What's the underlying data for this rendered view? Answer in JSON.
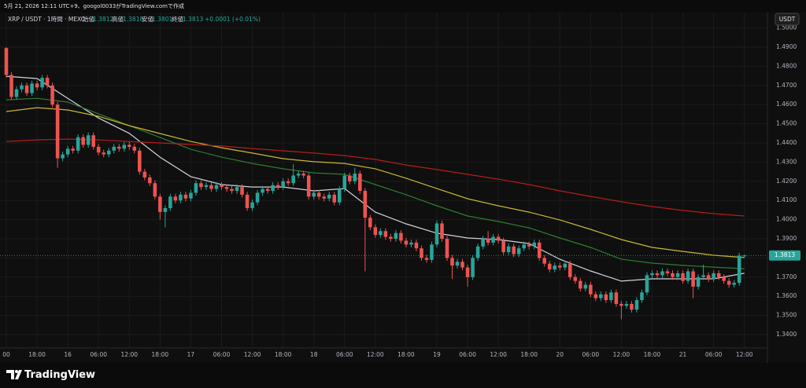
{
  "header": {
    "credit": "5月 21, 2026 12:11 UTC+9、googol0033がTradingView.comで作成",
    "brand": "TradingView",
    "currency_button": "USDT"
  },
  "chart_data": {
    "type": "candlestick",
    "symbol": "XRP / USDT · 1時間 · MEXC",
    "ohlc_labels": [
      "始値",
      "高値",
      "安値",
      "終値"
    ],
    "change": "+0.0001 (+0.01%)",
    "up_color": "#26a69a",
    "down_color": "#ef5350",
    "candles": [
      [
        1.4895,
        1.49,
        1.474,
        1.4755
      ],
      [
        1.4755,
        1.477,
        1.4625,
        1.464
      ],
      [
        1.464,
        1.4695,
        1.4625,
        1.468
      ],
      [
        1.468,
        1.4715,
        1.4665,
        1.47
      ],
      [
        1.47,
        1.4715,
        1.4645,
        1.466
      ],
      [
        1.466,
        1.4725,
        1.4645,
        1.471
      ],
      [
        1.471,
        1.4725,
        1.4675,
        1.469
      ],
      [
        1.469,
        1.4755,
        1.4675,
        1.474
      ],
      [
        1.474,
        1.4755,
        1.4685,
        1.47
      ],
      [
        1.47,
        1.4715,
        1.4585,
        1.46
      ],
      [
        1.46,
        1.4615,
        1.427,
        1.432
      ],
      [
        1.432,
        1.4355,
        1.4305,
        1.434
      ],
      [
        1.434,
        1.4385,
        1.4325,
        1.437
      ],
      [
        1.437,
        1.4385,
        1.4345,
        1.436
      ],
      [
        1.436,
        1.4445,
        1.4345,
        1.443
      ],
      [
        1.443,
        1.4445,
        1.4375,
        1.439
      ],
      [
        1.439,
        1.4455,
        1.4375,
        1.444
      ],
      [
        1.444,
        1.4455,
        1.4365,
        1.438
      ],
      [
        1.438,
        1.4395,
        1.4335,
        1.435
      ],
      [
        1.435,
        1.4365,
        1.4325,
        1.434
      ],
      [
        1.434,
        1.4375,
        1.4325,
        1.436
      ],
      [
        1.436,
        1.4395,
        1.4345,
        1.438
      ],
      [
        1.438,
        1.4395,
        1.4355,
        1.437
      ],
      [
        1.437,
        1.4405,
        1.4355,
        1.439
      ],
      [
        1.439,
        1.4405,
        1.4365,
        1.438
      ],
      [
        1.438,
        1.4395,
        1.4345,
        1.436
      ],
      [
        1.436,
        1.4375,
        1.4235,
        1.425
      ],
      [
        1.425,
        1.4265,
        1.4205,
        1.422
      ],
      [
        1.422,
        1.4235,
        1.4175,
        1.419
      ],
      [
        1.419,
        1.4205,
        1.4105,
        1.412
      ],
      [
        1.412,
        1.4135,
        1.4,
        1.404
      ],
      [
        1.404,
        1.4075,
        1.396,
        1.406
      ],
      [
        1.406,
        1.4135,
        1.4045,
        1.412
      ],
      [
        1.412,
        1.4135,
        1.4085,
        1.41
      ],
      [
        1.41,
        1.4145,
        1.4085,
        1.413
      ],
      [
        1.413,
        1.4145,
        1.4095,
        1.411
      ],
      [
        1.411,
        1.4155,
        1.4095,
        1.414
      ],
      [
        1.414,
        1.4205,
        1.4125,
        1.419
      ],
      [
        1.419,
        1.4205,
        1.4155,
        1.417
      ],
      [
        1.417,
        1.4195,
        1.4155,
        1.418
      ],
      [
        1.418,
        1.4195,
        1.4145,
        1.416
      ],
      [
        1.416,
        1.4195,
        1.4145,
        1.418
      ],
      [
        1.418,
        1.4195,
        1.4155,
        1.417
      ],
      [
        1.417,
        1.4185,
        1.4145,
        1.416
      ],
      [
        1.416,
        1.4175,
        1.4135,
        1.415
      ],
      [
        1.415,
        1.4185,
        1.4135,
        1.417
      ],
      [
        1.417,
        1.4185,
        1.4115,
        1.413
      ],
      [
        1.413,
        1.4145,
        1.4045,
        1.406
      ],
      [
        1.406,
        1.4105,
        1.4045,
        1.409
      ],
      [
        1.409,
        1.4155,
        1.4075,
        1.414
      ],
      [
        1.414,
        1.4175,
        1.4125,
        1.416
      ],
      [
        1.416,
        1.4175,
        1.4135,
        1.415
      ],
      [
        1.415,
        1.4195,
        1.4135,
        1.418
      ],
      [
        1.418,
        1.4195,
        1.4155,
        1.417
      ],
      [
        1.417,
        1.4215,
        1.4155,
        1.42
      ],
      [
        1.42,
        1.4215,
        1.4175,
        1.419
      ],
      [
        1.419,
        1.429,
        1.4175,
        1.423
      ],
      [
        1.423,
        1.4255,
        1.4215,
        1.424
      ],
      [
        1.424,
        1.4255,
        1.4215,
        1.423
      ],
      [
        1.423,
        1.4245,
        1.4105,
        1.412
      ],
      [
        1.412,
        1.4155,
        1.4105,
        1.414
      ],
      [
        1.414,
        1.4155,
        1.4105,
        1.412
      ],
      [
        1.412,
        1.4135,
        1.4095,
        1.411
      ],
      [
        1.411,
        1.4145,
        1.4095,
        1.413
      ],
      [
        1.413,
        1.4145,
        1.4075,
        1.409
      ],
      [
        1.409,
        1.4175,
        1.4075,
        1.416
      ],
      [
        1.416,
        1.4245,
        1.4145,
        1.423
      ],
      [
        1.423,
        1.4245,
        1.4185,
        1.42
      ],
      [
        1.42,
        1.427,
        1.4185,
        1.424
      ],
      [
        1.424,
        1.4255,
        1.4135,
        1.415
      ],
      [
        1.415,
        1.4165,
        1.373,
        1.401
      ],
      [
        1.401,
        1.4025,
        1.3945,
        1.396
      ],
      [
        1.396,
        1.3975,
        1.3905,
        1.392
      ],
      [
        1.392,
        1.3955,
        1.3905,
        1.394
      ],
      [
        1.394,
        1.3955,
        1.3895,
        1.391
      ],
      [
        1.391,
        1.3925,
        1.3885,
        1.39
      ],
      [
        1.39,
        1.3945,
        1.3885,
        1.393
      ],
      [
        1.393,
        1.3945,
        1.3875,
        1.389
      ],
      [
        1.389,
        1.3905,
        1.3855,
        1.387
      ],
      [
        1.387,
        1.3895,
        1.3855,
        1.388
      ],
      [
        1.388,
        1.3895,
        1.3835,
        1.385
      ],
      [
        1.385,
        1.3865,
        1.3785,
        1.38
      ],
      [
        1.38,
        1.3815,
        1.3775,
        1.379
      ],
      [
        1.379,
        1.3885,
        1.3775,
        1.387
      ],
      [
        1.387,
        1.3995,
        1.3855,
        1.398
      ],
      [
        1.398,
        1.3995,
        1.3885,
        1.39
      ],
      [
        1.39,
        1.3915,
        1.3785,
        1.38
      ],
      [
        1.38,
        1.3815,
        1.369,
        1.376
      ],
      [
        1.376,
        1.3795,
        1.3745,
        1.378
      ],
      [
        1.378,
        1.3795,
        1.3735,
        1.375
      ],
      [
        1.375,
        1.3765,
        1.365,
        1.37
      ],
      [
        1.37,
        1.3815,
        1.3685,
        1.38
      ],
      [
        1.38,
        1.3875,
        1.3785,
        1.386
      ],
      [
        1.386,
        1.3915,
        1.3845,
        1.39
      ],
      [
        1.39,
        1.394,
        1.3865,
        1.388
      ],
      [
        1.388,
        1.3925,
        1.3865,
        1.391
      ],
      [
        1.391,
        1.3925,
        1.3875,
        1.389
      ],
      [
        1.389,
        1.3905,
        1.3815,
        1.383
      ],
      [
        1.383,
        1.3875,
        1.3815,
        1.386
      ],
      [
        1.386,
        1.3875,
        1.3805,
        1.382
      ],
      [
        1.382,
        1.3865,
        1.3805,
        1.385
      ],
      [
        1.385,
        1.3885,
        1.3835,
        1.387
      ],
      [
        1.387,
        1.3885,
        1.3845,
        1.386
      ],
      [
        1.386,
        1.3895,
        1.3845,
        1.388
      ],
      [
        1.388,
        1.3895,
        1.3785,
        1.38
      ],
      [
        1.38,
        1.3815,
        1.3755,
        1.377
      ],
      [
        1.377,
        1.3785,
        1.3725,
        1.374
      ],
      [
        1.374,
        1.3775,
        1.3725,
        1.376
      ],
      [
        1.376,
        1.3775,
        1.3735,
        1.375
      ],
      [
        1.375,
        1.3785,
        1.3735,
        1.377
      ],
      [
        1.377,
        1.3785,
        1.3685,
        1.37
      ],
      [
        1.37,
        1.3715,
        1.3665,
        1.368
      ],
      [
        1.368,
        1.3695,
        1.3625,
        1.364
      ],
      [
        1.364,
        1.3675,
        1.3625,
        1.366
      ],
      [
        1.366,
        1.3675,
        1.3595,
        1.361
      ],
      [
        1.361,
        1.3625,
        1.3575,
        1.359
      ],
      [
        1.359,
        1.3625,
        1.3575,
        1.361
      ],
      [
        1.361,
        1.3625,
        1.3565,
        1.358
      ],
      [
        1.358,
        1.3635,
        1.3565,
        1.362
      ],
      [
        1.362,
        1.3635,
        1.3545,
        1.356
      ],
      [
        1.356,
        1.3575,
        1.348,
        1.355
      ],
      [
        1.355,
        1.3575,
        1.3535,
        1.356
      ],
      [
        1.356,
        1.3575,
        1.3515,
        1.353
      ],
      [
        1.353,
        1.3595,
        1.3515,
        1.358
      ],
      [
        1.358,
        1.3635,
        1.3565,
        1.362
      ],
      [
        1.362,
        1.3725,
        1.3605,
        1.371
      ],
      [
        1.371,
        1.3735,
        1.3695,
        1.372
      ],
      [
        1.372,
        1.3735,
        1.3695,
        1.371
      ],
      [
        1.371,
        1.3745,
        1.3695,
        1.373
      ],
      [
        1.373,
        1.3745,
        1.3705,
        1.372
      ],
      [
        1.372,
        1.3735,
        1.3685,
        1.37
      ],
      [
        1.37,
        1.3735,
        1.3685,
        1.372
      ],
      [
        1.372,
        1.3735,
        1.3665,
        1.368
      ],
      [
        1.368,
        1.3745,
        1.3665,
        1.373
      ],
      [
        1.373,
        1.3745,
        1.359,
        1.365
      ],
      [
        1.365,
        1.3715,
        1.3635,
        1.37
      ],
      [
        1.37,
        1.3765,
        1.3685,
        1.371
      ],
      [
        1.371,
        1.3725,
        1.3675,
        1.369
      ],
      [
        1.369,
        1.3735,
        1.3675,
        1.372
      ],
      [
        1.372,
        1.3735,
        1.3685,
        1.37
      ],
      [
        1.37,
        1.3715,
        1.3665,
        1.368
      ],
      [
        1.368,
        1.3695,
        1.3645,
        1.366
      ],
      [
        1.366,
        1.3685,
        1.3645,
        1.367
      ],
      [
        1.367,
        1.3827,
        1.3655,
        1.3812
      ],
      [
        1.3812,
        1.3818,
        1.3801,
        1.3813
      ]
    ],
    "line_x": [
      0,
      6,
      12,
      18,
      24,
      30,
      36,
      42,
      48,
      54,
      60,
      66,
      72,
      78,
      84,
      90,
      96,
      102,
      108,
      114,
      120,
      126,
      132,
      138,
      144
    ],
    "lines": [
      {
        "color": "#d1d4dc",
        "values": [
          1.4748,
          1.4736,
          1.4633,
          1.453,
          1.445,
          1.4326,
          1.4224,
          1.4183,
          1.417,
          1.417,
          1.415,
          1.4162,
          1.4039,
          1.3978,
          1.3929,
          1.3904,
          1.3896,
          1.3875,
          1.3793,
          1.3732,
          1.3679,
          1.3691,
          1.3691,
          1.3691,
          1.372
        ]
      },
      {
        "color": "#2e7d32",
        "values": [
          1.4625,
          1.4633,
          1.4613,
          1.4552,
          1.449,
          1.4429,
          1.4367,
          1.4326,
          1.4293,
          1.4265,
          1.4244,
          1.4236,
          1.4183,
          1.413,
          1.4072,
          1.4019,
          1.399,
          1.3957,
          1.3904,
          1.3855,
          1.3793,
          1.3773,
          1.3761,
          1.3752,
          1.3744
        ]
      },
      {
        "color": "#c8b832",
        "values": [
          1.4564,
          1.4584,
          1.4572,
          1.4539,
          1.449,
          1.4449,
          1.4408,
          1.4375,
          1.4347,
          1.4318,
          1.4302,
          1.4293,
          1.4265,
          1.4216,
          1.4162,
          1.4109,
          1.4072,
          1.4039,
          1.3998,
          1.3949,
          1.3896,
          1.3855,
          1.3834,
          1.3814,
          1.3802
        ]
      },
      {
        "color": "#b71c1c",
        "values": [
          1.4408,
          1.4416,
          1.442,
          1.4416,
          1.4408,
          1.44,
          1.4392,
          1.4384,
          1.4371,
          1.4359,
          1.4347,
          1.4334,
          1.4314,
          1.4285,
          1.4261,
          1.4236,
          1.4211,
          1.4183,
          1.415,
          1.4121,
          1.4093,
          1.4068,
          1.4048,
          1.4031,
          1.4019
        ]
      }
    ],
    "xlim": [
      -0.46,
      148.5
    ],
    "ylim": [
      1.3318,
      1.5023
    ],
    "grid": true,
    "xticks": [
      {
        "value": 0,
        "label": "00"
      },
      {
        "value": 6,
        "label": "18:00"
      },
      {
        "value": 12,
        "label": "16"
      },
      {
        "value": 18,
        "label": "06:00"
      },
      {
        "value": 24,
        "label": "12:00"
      },
      {
        "value": 30,
        "label": "18:00"
      },
      {
        "value": 36,
        "label": "17"
      },
      {
        "value": 42,
        "label": "06:00"
      },
      {
        "value": 48,
        "label": "12:00"
      },
      {
        "value": 54,
        "label": "18:00"
      },
      {
        "value": 60,
        "label": "18"
      },
      {
        "value": 66,
        "label": "06:00"
      },
      {
        "value": 72,
        "label": "12:00"
      },
      {
        "value": 78,
        "label": "18:00"
      },
      {
        "value": 84,
        "label": "19"
      },
      {
        "value": 90,
        "label": "06:00"
      },
      {
        "value": 96,
        "label": "12:00"
      },
      {
        "value": 102,
        "label": "18:00"
      },
      {
        "value": 108,
        "label": "20"
      },
      {
        "value": 114,
        "label": "06:00"
      },
      {
        "value": 120,
        "label": "12:00"
      },
      {
        "value": 126,
        "label": "18:00"
      },
      {
        "value": 132,
        "label": "21"
      },
      {
        "value": 138,
        "label": "06:00"
      },
      {
        "value": 144,
        "label": "12:00"
      }
    ],
    "yticks": [
      {
        "value": 1.34,
        "label": "1.3400"
      },
      {
        "value": 1.35,
        "label": "1.3500"
      },
      {
        "value": 1.36,
        "label": "1.3600"
      },
      {
        "value": 1.37,
        "label": "1.3700"
      },
      {
        "value": 1.38,
        "label": "1.3800"
      },
      {
        "value": 1.39,
        "label": "1.3900"
      },
      {
        "value": 1.4,
        "label": "1.4000"
      },
      {
        "value": 1.41,
        "label": "1.4100"
      },
      {
        "value": 1.42,
        "label": "1.4200"
      },
      {
        "value": 1.43,
        "label": "1.4300"
      },
      {
        "value": 1.44,
        "label": "1.4400"
      },
      {
        "value": 1.45,
        "label": "1.4500"
      },
      {
        "value": 1.46,
        "label": "1.4600"
      },
      {
        "value": 1.47,
        "label": "1.4700"
      },
      {
        "value": 1.48,
        "label": "1.4800"
      },
      {
        "value": 1.49,
        "label": "1.4900"
      },
      {
        "value": 1.5,
        "label": "1.5000"
      }
    ]
  }
}
